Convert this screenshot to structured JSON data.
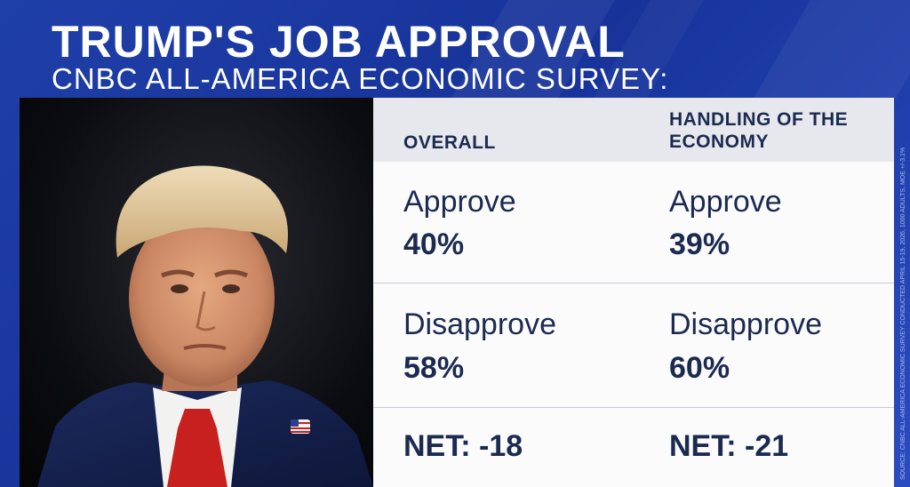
{
  "header": {
    "title": "TRUMP'S JOB APPROVAL",
    "subtitle": "CNBC ALL-AMERICA ECONOMIC SURVEY:"
  },
  "table": {
    "columns": [
      {
        "header": "OVERALL",
        "approve_label": "Approve",
        "approve_value": "40%",
        "disapprove_label": "Disapprove",
        "disapprove_value": "58%",
        "net": "NET: -18"
      },
      {
        "header": "HANDLING OF THE ECONOMY",
        "approve_label": "Approve",
        "approve_value": "39%",
        "disapprove_label": "Disapprove",
        "disapprove_value": "60%",
        "net": "NET: -21"
      }
    ]
  },
  "source": "SOURCE: CNBC ALL-AMERICA ECONOMIC SURVEY CONDUCTED APRIL 15-19, 2026, 1000 ADULTS, MOE +/-3.1%",
  "colors": {
    "background": "#1f3fa8",
    "header_bg": "#e7e8ee",
    "text_dark": "#1b2a4f",
    "tie_red": "#c8201f",
    "suit_blue": "#1c2a5e"
  }
}
